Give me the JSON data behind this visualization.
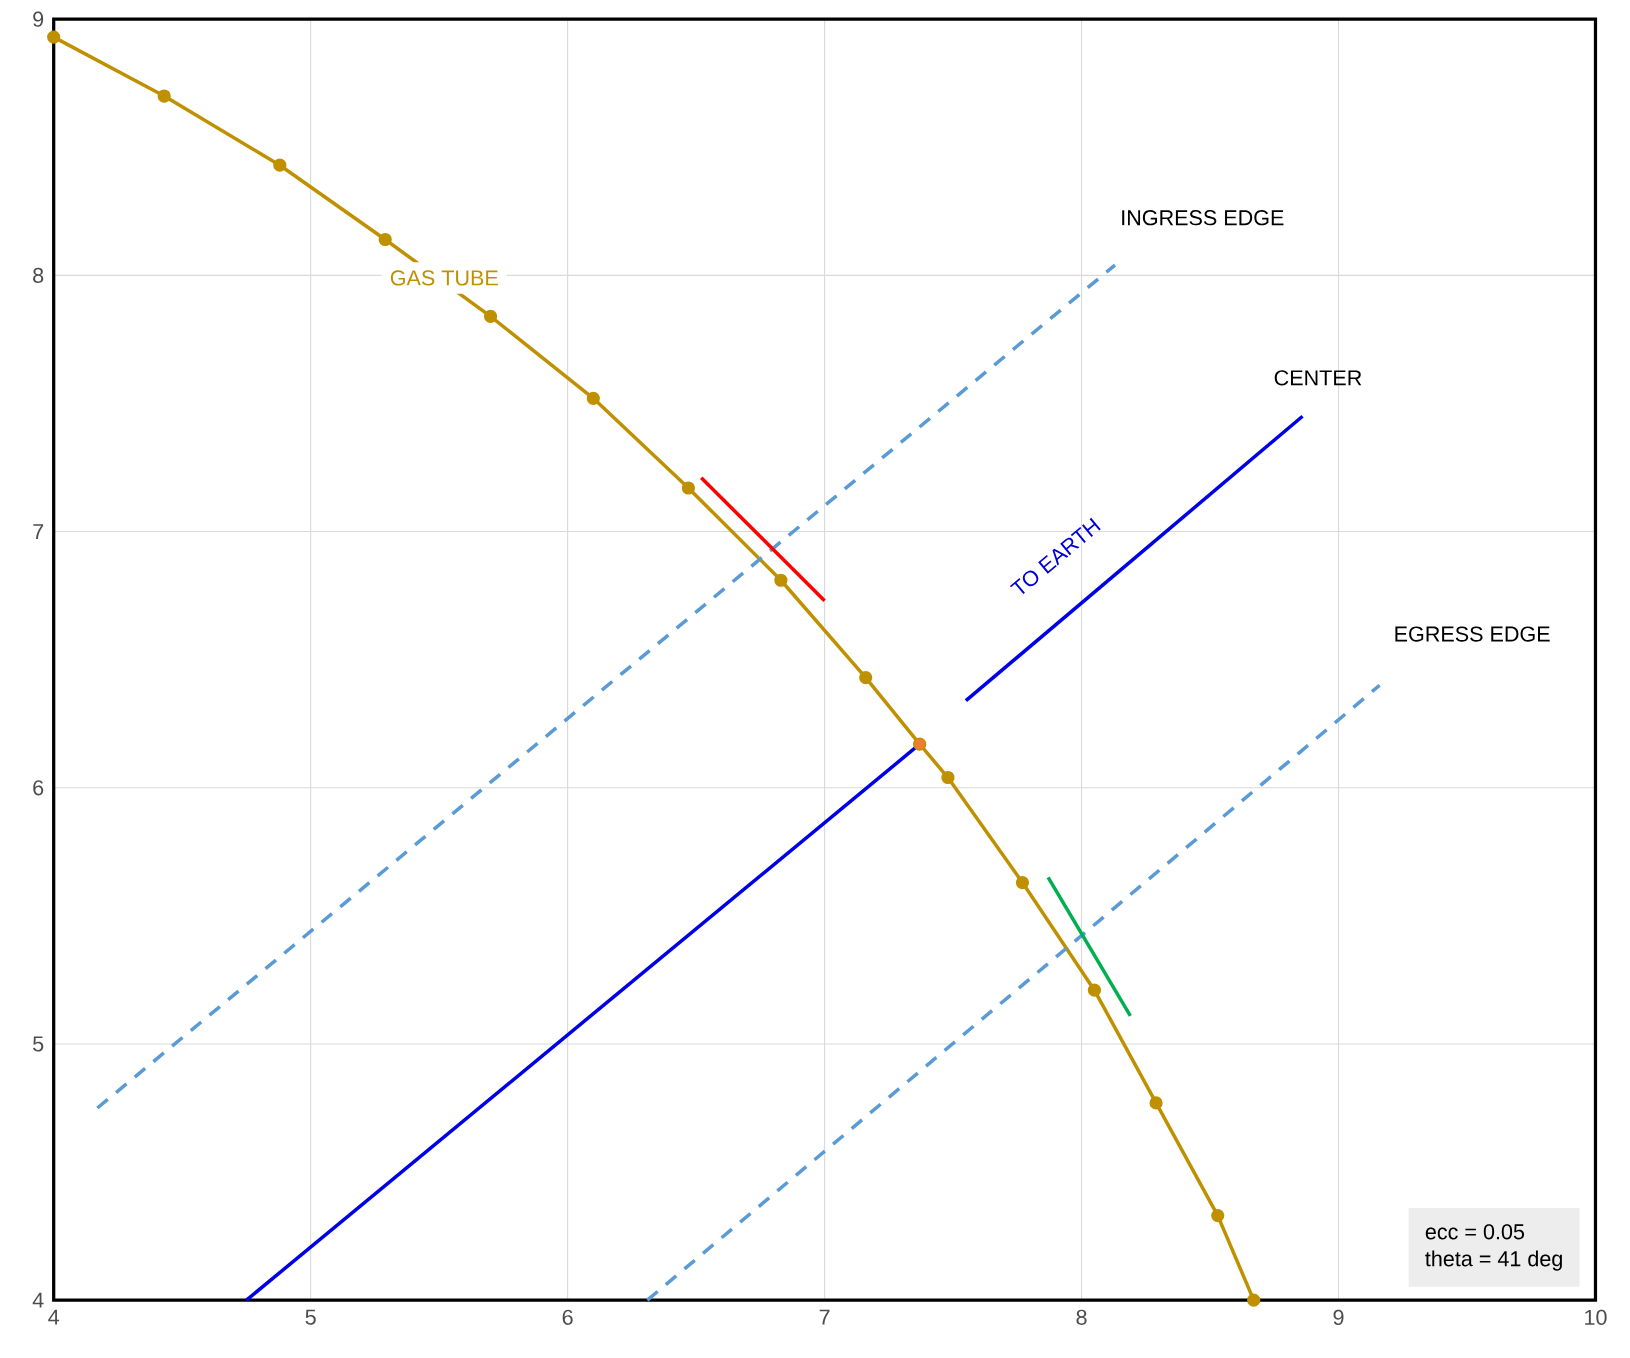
{
  "chart_data": {
    "type": "line",
    "xlim": [
      4,
      10
    ],
    "ylim": [
      4,
      9
    ],
    "xticks": [
      4,
      5,
      6,
      7,
      8,
      9,
      10
    ],
    "yticks": [
      4,
      5,
      6,
      7,
      8,
      9
    ],
    "grid": true,
    "series": [
      {
        "color": "#bf9000",
        "marker": "circle",
        "x": [
          4.0,
          4.43,
          4.88,
          5.29,
          5.7,
          6.1,
          6.47,
          6.83,
          7.16,
          7.37,
          7.48,
          7.77,
          8.05,
          8.29,
          8.53,
          8.67
        ],
        "values": [
          8.93,
          8.7,
          8.43,
          8.14,
          7.84,
          7.52,
          7.17,
          6.81,
          6.43,
          6.17,
          6.04,
          5.63,
          5.21,
          4.77,
          4.33,
          4.0
        ]
      },
      {
        "type": "line",
        "color": "#5b9bd5",
        "line_style": "dashed",
        "x": [
          4.17,
          8.13
        ],
        "values": [
          4.75,
          8.04
        ]
      },
      {
        "type": "line",
        "color": "#5b9bd5",
        "line_style": "dashed",
        "x": [
          6.31,
          9.16
        ],
        "values": [
          4.0,
          6.4
        ]
      },
      {
        "type": "line",
        "color": "#0000e6",
        "x": [
          4.75,
          7.37
        ],
        "values": [
          4.0,
          6.17
        ]
      },
      {
        "type": "line",
        "color": "#0000e6",
        "x": [
          7.55,
          8.86
        ],
        "values": [
          6.34,
          7.45
        ]
      },
      {
        "type": "line",
        "color": "#ff0000",
        "x": [
          6.52,
          7.0
        ],
        "values": [
          7.21,
          6.73
        ]
      },
      {
        "type": "line",
        "color": "#00b050",
        "x": [
          7.87,
          8.19
        ],
        "values": [
          5.65,
          5.11
        ]
      },
      {
        "type": "scatter",
        "color": "#ed7d31",
        "marker": "circle",
        "x": [
          7.37
        ],
        "values": [
          6.17
        ]
      }
    ],
    "annotations": [
      {
        "text": "GAS TUBE",
        "x": 5.52,
        "y": 7.99
      },
      "INGRESS EDGE",
      "CENTER",
      "TO EARTH",
      "EGRESS EDGE",
      "ecc = 0.05",
      "theta = 41 deg"
    ]
  }
}
